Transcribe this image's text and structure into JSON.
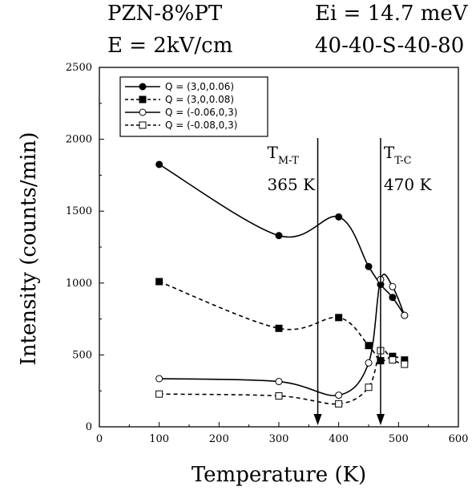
{
  "header": {
    "left_line1": "PZN-8%PT",
    "left_line2": "E = 2kV/cm",
    "right_line1": "Ei = 14.7 meV",
    "right_line2": "40-40-S-40-80"
  },
  "chart_data": {
    "type": "line",
    "xlabel": "Temperature (K)",
    "ylabel": "Intensity (counts/min)",
    "xlim": [
      0,
      600
    ],
    "ylim": [
      0,
      2500
    ],
    "xticks": [
      "0",
      "100",
      "200",
      "300",
      "400",
      "500",
      "600"
    ],
    "yticks": [
      "0",
      "500",
      "1000",
      "1500",
      "2000",
      "2500"
    ],
    "grid": false,
    "legend_position": "top-left",
    "series": [
      {
        "name": "Q = (3,0,0.06)",
        "marker": "filled-circle",
        "line": "solid",
        "x": [
          100,
          300,
          400,
          450,
          470,
          490,
          510
        ],
        "y": [
          1825,
          1330,
          1460,
          1115,
          990,
          900,
          775
        ]
      },
      {
        "name": "Q = (3,0,0.08)",
        "marker": "filled-square",
        "line": "dashed",
        "x": [
          100,
          300,
          400,
          450,
          470,
          490,
          510
        ],
        "y": [
          1010,
          685,
          760,
          565,
          460,
          490,
          465
        ]
      },
      {
        "name": "Q = (-0.06,0,3)",
        "marker": "open-circle",
        "line": "solid",
        "x": [
          100,
          300,
          400,
          450,
          470,
          490,
          510
        ],
        "y": [
          335,
          315,
          220,
          445,
          1025,
          975,
          775
        ]
      },
      {
        "name": "Q = (-0.08,0,3)",
        "marker": "open-square",
        "line": "dashed",
        "x": [
          100,
          300,
          400,
          450,
          470,
          490,
          510
        ],
        "y": [
          228,
          215,
          160,
          275,
          530,
          465,
          435
        ]
      }
    ],
    "annotations": [
      {
        "label": "T",
        "sub": "M-T",
        "value_label": "365 K",
        "x": 365
      },
      {
        "label": "T",
        "sub": "T-C",
        "value_label": "470 K",
        "x": 470
      }
    ]
  }
}
